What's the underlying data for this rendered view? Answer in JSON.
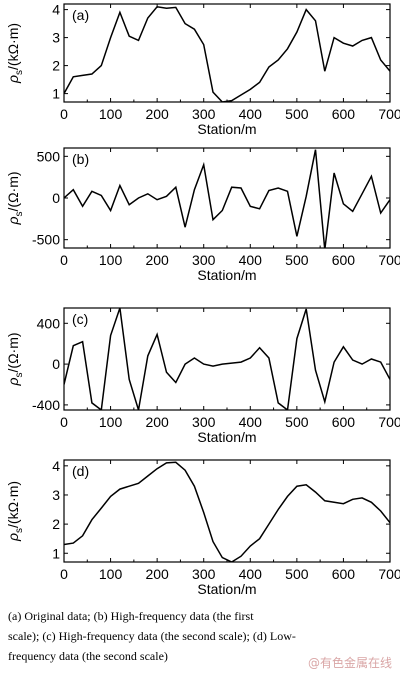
{
  "chart_data": [
    {
      "type": "line",
      "panel_label": "(a)",
      "ylabel_main": "ρ",
      "ylabel_sub": "s",
      "ylabel_unit": "/(kΩ·m)",
      "xlabel": "Station/m",
      "xlim": [
        0,
        700
      ],
      "ylim": [
        0.7,
        4.2
      ],
      "xticks": [
        0,
        100,
        200,
        300,
        400,
        500,
        600,
        700
      ],
      "yticks": [
        1,
        2,
        3,
        4
      ],
      "series": [
        {
          "x": [
            0,
            20,
            40,
            60,
            80,
            100,
            120,
            140,
            160,
            180,
            200,
            220,
            240,
            260,
            280,
            300,
            320,
            340,
            360,
            380,
            400,
            420,
            440,
            460,
            480,
            500,
            520,
            540,
            560,
            580,
            600,
            620,
            640,
            660,
            680,
            700
          ],
          "values": [
            1.0,
            1.6,
            1.65,
            1.7,
            2.0,
            3.0,
            3.9,
            3.05,
            2.9,
            3.7,
            4.1,
            4.05,
            4.08,
            3.5,
            3.3,
            2.75,
            1.05,
            0.7,
            0.75,
            0.95,
            1.15,
            1.4,
            1.95,
            2.2,
            2.6,
            3.2,
            4.0,
            3.6,
            1.8,
            3.0,
            2.8,
            2.7,
            2.9,
            3.0,
            2.2,
            1.8
          ]
        }
      ]
    },
    {
      "type": "line",
      "panel_label": "(b)",
      "ylabel_main": "ρ",
      "ylabel_sub": "s",
      "ylabel_unit": "/(Ω·m)",
      "xlabel": "Station/m",
      "xlim": [
        0,
        700
      ],
      "ylim": [
        -600,
        600
      ],
      "xticks": [
        0,
        100,
        200,
        300,
        400,
        500,
        600,
        700
      ],
      "yticks": [
        500,
        0,
        -500
      ],
      "series": [
        {
          "x": [
            0,
            20,
            40,
            60,
            80,
            100,
            120,
            140,
            160,
            180,
            200,
            220,
            240,
            260,
            280,
            300,
            320,
            340,
            360,
            380,
            400,
            420,
            440,
            460,
            480,
            500,
            520,
            540,
            560,
            580,
            600,
            620,
            640,
            660,
            680,
            700
          ],
          "values": [
            0,
            100,
            -100,
            80,
            30,
            -150,
            150,
            -80,
            0,
            50,
            -20,
            20,
            130,
            -350,
            100,
            400,
            -260,
            -150,
            130,
            120,
            -100,
            -130,
            90,
            120,
            80,
            -460,
            20,
            580,
            -620,
            300,
            -70,
            -160,
            50,
            260,
            -180,
            -20
          ]
        }
      ]
    },
    {
      "type": "line",
      "panel_label": "(c)",
      "ylabel_main": "ρ",
      "ylabel_sub": "s",
      "ylabel_unit": "/(Ω·m)",
      "xlabel": "Station/m",
      "xlim": [
        0,
        700
      ],
      "ylim": [
        -450,
        550
      ],
      "xticks": [
        0,
        100,
        200,
        300,
        400,
        500,
        600,
        700
      ],
      "yticks": [
        400,
        0,
        -400
      ],
      "series": [
        {
          "x": [
            0,
            20,
            40,
            60,
            80,
            100,
            120,
            140,
            160,
            180,
            200,
            220,
            240,
            260,
            280,
            300,
            320,
            340,
            360,
            380,
            400,
            420,
            440,
            460,
            480,
            500,
            520,
            540,
            560,
            580,
            600,
            620,
            640,
            660,
            680,
            700
          ],
          "values": [
            -200,
            180,
            220,
            -380,
            -450,
            280,
            550,
            -150,
            -450,
            80,
            290,
            -80,
            -180,
            0,
            60,
            0,
            -20,
            0,
            10,
            20,
            60,
            160,
            60,
            -380,
            -450,
            250,
            540,
            -60,
            -370,
            20,
            170,
            40,
            0,
            50,
            20,
            -150
          ]
        }
      ]
    },
    {
      "type": "line",
      "panel_label": "(d)",
      "ylabel_main": "ρ",
      "ylabel_sub": "s",
      "ylabel_unit": "/(kΩ·m)",
      "xlabel": "Station/m",
      "xlim": [
        0,
        700
      ],
      "ylim": [
        0.7,
        4.2
      ],
      "xticks": [
        0,
        100,
        200,
        300,
        400,
        500,
        600,
        700
      ],
      "yticks": [
        1,
        2,
        3,
        4
      ],
      "series": [
        {
          "x": [
            0,
            20,
            40,
            60,
            80,
            100,
            120,
            140,
            160,
            180,
            200,
            220,
            240,
            260,
            280,
            300,
            320,
            340,
            360,
            380,
            400,
            420,
            440,
            460,
            480,
            500,
            520,
            540,
            560,
            580,
            600,
            620,
            640,
            660,
            680,
            700
          ],
          "values": [
            1.3,
            1.35,
            1.6,
            2.15,
            2.55,
            2.95,
            3.2,
            3.3,
            3.4,
            3.65,
            3.9,
            4.1,
            4.12,
            3.85,
            3.3,
            2.4,
            1.4,
            0.85,
            0.7,
            0.9,
            1.25,
            1.5,
            2.0,
            2.5,
            2.95,
            3.3,
            3.35,
            3.1,
            2.8,
            2.75,
            2.7,
            2.85,
            2.9,
            2.75,
            2.45,
            2.05
          ]
        }
      ]
    }
  ],
  "caption": {
    "line1": "(a) Original data; (b) High-frequency data (the first",
    "line2": "scale); (c) High-frequency data (the second scale); (d) Low-",
    "line3": "frequency data (the second scale)"
  },
  "watermark": "@有色金属在线"
}
